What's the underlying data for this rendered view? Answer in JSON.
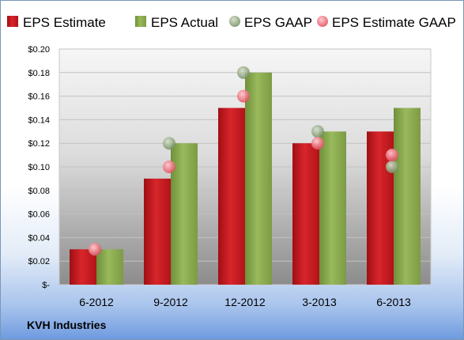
{
  "colors": {
    "estimate": "#c8161d",
    "actual": "#8aac4c",
    "gaap": "#7f9a6a",
    "estimate_gaap": "#e86070"
  },
  "chart_data": {
    "type": "bar",
    "categories": [
      "6-2012",
      "9-2012",
      "12-2012",
      "3-2013",
      "6-2013"
    ],
    "series": [
      {
        "name": "EPS Estimate",
        "kind": "bar",
        "values": [
          0.03,
          0.09,
          0.15,
          0.12,
          0.13
        ]
      },
      {
        "name": "EPS Actual",
        "kind": "bar",
        "values": [
          0.03,
          0.12,
          0.18,
          0.13,
          0.15
        ]
      },
      {
        "name": "EPS GAAP",
        "kind": "scatter",
        "values": [
          0.03,
          0.12,
          0.18,
          0.13,
          0.1
        ]
      },
      {
        "name": "EPS Estimate GAAP",
        "kind": "scatter",
        "values": [
          0.03,
          0.1,
          0.16,
          0.12,
          0.11
        ]
      }
    ],
    "yticks": [
      "$-",
      "$0.02",
      "$0.04",
      "$0.06",
      "$0.08",
      "$0.10",
      "$0.12",
      "$0.14",
      "$0.16",
      "$0.18",
      "$0.20"
    ],
    "ylim": [
      0,
      0.2
    ],
    "grid": true,
    "legend_position": "top",
    "footer": "KVH Industries"
  }
}
